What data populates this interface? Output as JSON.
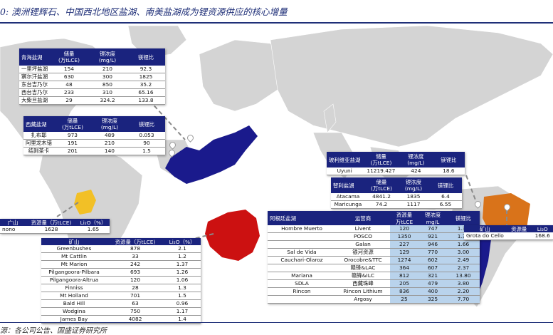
{
  "title": "0: 澳洲锂辉石、中国西北地区盐湖、南美盐湖成为锂资源供应的核心增量",
  "footnote": "源：各公司公告、国盛证券研究所",
  "colors": {
    "accent": "#1a237e",
    "highlight": "#b9d3ec",
    "china": "#1a1a8c",
    "australia": "#cc1111",
    "brazil": "#d9731a",
    "africa": "#f2c026"
  },
  "qinghai": {
    "headers": [
      "青海盐湖",
      "储量\n(万tLCE)",
      "锂浓度\n(mg/L)",
      "镁锂比"
    ],
    "rows": [
      [
        "一里坪盐湖",
        "154",
        "210",
        "92.3"
      ],
      [
        "察尔汗盐湖",
        "630",
        "300",
        "1825"
      ],
      [
        "东台吉乃尔",
        "48",
        "850",
        "35.2"
      ],
      [
        "西台吉乃尔",
        "233",
        "310",
        "65.16"
      ],
      [
        "大柴旦盐湖",
        "29",
        "324.2",
        "133.8"
      ]
    ]
  },
  "tibet": {
    "headers": [
      "西藏盐湖",
      "储量\n(万tLCE)",
      "锂浓度\n(mg/L)",
      "镁锂比"
    ],
    "rows": [
      [
        "扎布耶",
        "973",
        "489",
        "0.053"
      ],
      [
        "阿里龙木错",
        "191",
        "210",
        "90"
      ],
      [
        "结则茶卡",
        "201",
        "140",
        "1.5"
      ]
    ]
  },
  "bolivia": {
    "headers": [
      "玻利维亚盐湖",
      "储量\n(万tLCE)",
      "锂浓度\n(mg/L)",
      "镁锂比"
    ],
    "rows": [
      [
        "Uyuni",
        "11219.427",
        "424",
        "18.6"
      ]
    ]
  },
  "chile": {
    "headers": [
      "智利盐湖",
      "储量\n(万tLCE)",
      "锂浓度\n(mg/L)",
      "镁锂比"
    ],
    "rows": [
      [
        "Atacama",
        "4841.2",
        "1835",
        "6.4"
      ],
      [
        "Maricunga",
        "74.2",
        "1117",
        "6.55"
      ]
    ]
  },
  "argentina": {
    "headers": [
      "阿根廷盐湖",
      "运营商",
      "资源量",
      "锂浓度",
      "镁锂比"
    ],
    "sub": [
      "万tLCE",
      "mg/L"
    ],
    "rows": [
      [
        "Hombre Muerto",
        "Livent",
        "120",
        "747",
        "1.34"
      ],
      [
        "",
        "POSCO",
        "1350",
        "921",
        "1.39"
      ],
      [
        "",
        "Galan",
        "227",
        "946",
        "1.66"
      ],
      [
        "Sal de Vida",
        "银河资源",
        "129",
        "770",
        "3.00"
      ],
      [
        "Cauchari-Olaroz",
        "Orocobre&TTC",
        "1274",
        "602",
        "2.49"
      ],
      [
        "",
        "赣锋&LAC",
        "364",
        "607",
        "2.37"
      ],
      [
        "Mariana",
        "赣锋&ILC",
        "812",
        "321",
        "13.80"
      ],
      [
        "SDLA",
        "西藏珠峰",
        "205",
        "479",
        "3.80"
      ],
      [
        "Rincon",
        "Rincon Lithium",
        "836",
        "400",
        "2.20"
      ],
      [
        "",
        "Argosy",
        "25",
        "325",
        "7.70"
      ]
    ]
  },
  "australia": {
    "headers": [
      "矿山",
      "资源量（万tLCE)",
      "Li₂O（%）"
    ],
    "rows": [
      [
        "Greenbushes",
        "878",
        "2.1"
      ],
      [
        "Mt Cattlin",
        "33",
        "1.2"
      ],
      [
        "Mt Marion",
        "242",
        "1.37"
      ],
      [
        "Pilgangoora-Pilbara",
        "693",
        "1.26"
      ],
      [
        "Pilgangoora-Altrua",
        "120",
        "1.06"
      ],
      [
        "Finniss",
        "28",
        "1.3"
      ],
      [
        "Mt Holland",
        "701",
        "1.5"
      ],
      [
        "Bald Hill",
        "63",
        "0.96"
      ],
      [
        "Wodgina",
        "750",
        "1.17"
      ],
      [
        "James Bay",
        "4082",
        "1.4"
      ]
    ]
  },
  "africa": {
    "headers": [
      "广山",
      "资源量（万tLCE)",
      "Li₂O（%）"
    ],
    "rows": [
      [
        "nono",
        "1628",
        "1.65"
      ]
    ]
  },
  "brazil": {
    "headers": [
      "矿山",
      "资源量",
      "Li₂O"
    ],
    "rows": [
      [
        "Grota do Cello",
        "",
        "168.6"
      ]
    ]
  }
}
